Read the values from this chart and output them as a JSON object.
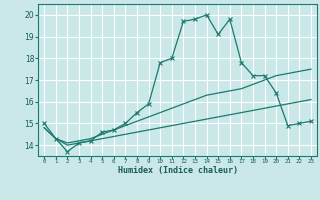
{
  "title": "",
  "xlabel": "Humidex (Indice chaleur)",
  "ylabel": "",
  "bg_color": "#cae8e8",
  "grid_color": "#ffffff",
  "line_color": "#1a7a6e",
  "x_ticks": [
    0,
    1,
    2,
    3,
    4,
    5,
    6,
    7,
    8,
    9,
    10,
    11,
    12,
    13,
    14,
    15,
    16,
    17,
    18,
    19,
    20,
    21,
    22,
    23
  ],
  "y_ticks": [
    14,
    15,
    16,
    17,
    18,
    19,
    20
  ],
  "ylim": [
    13.5,
    20.5
  ],
  "xlim": [
    -0.5,
    23.5
  ],
  "line1_x": [
    0,
    1,
    2,
    3,
    4,
    5,
    6,
    7,
    8,
    9,
    10,
    11,
    12,
    13,
    14,
    15,
    16,
    17,
    18,
    19,
    20,
    21,
    22,
    23
  ],
  "line1_y": [
    15.0,
    14.3,
    13.7,
    14.1,
    14.2,
    14.6,
    14.7,
    15.0,
    15.5,
    15.9,
    17.8,
    18.0,
    19.7,
    19.8,
    20.0,
    19.1,
    19.8,
    17.8,
    17.2,
    17.2,
    16.4,
    14.9,
    15.0,
    15.1
  ],
  "line2_x": [
    0,
    1,
    2,
    3,
    4,
    5,
    6,
    7,
    8,
    9,
    10,
    11,
    12,
    13,
    14,
    15,
    16,
    17,
    18,
    19,
    20,
    21,
    22,
    23
  ],
  "line2_y": [
    14.8,
    14.3,
    14.0,
    14.1,
    14.2,
    14.3,
    14.4,
    14.5,
    14.6,
    14.7,
    14.8,
    14.9,
    15.0,
    15.1,
    15.2,
    15.3,
    15.4,
    15.5,
    15.6,
    15.7,
    15.8,
    15.9,
    16.0,
    16.1
  ],
  "line3_x": [
    0,
    1,
    2,
    3,
    4,
    5,
    6,
    7,
    8,
    9,
    10,
    11,
    12,
    13,
    14,
    15,
    16,
    17,
    18,
    19,
    20,
    21,
    22,
    23
  ],
  "line3_y": [
    14.8,
    14.3,
    14.1,
    14.2,
    14.3,
    14.5,
    14.7,
    14.9,
    15.1,
    15.3,
    15.5,
    15.7,
    15.9,
    16.1,
    16.3,
    16.4,
    16.5,
    16.6,
    16.8,
    17.0,
    17.2,
    17.3,
    17.4,
    17.5
  ]
}
